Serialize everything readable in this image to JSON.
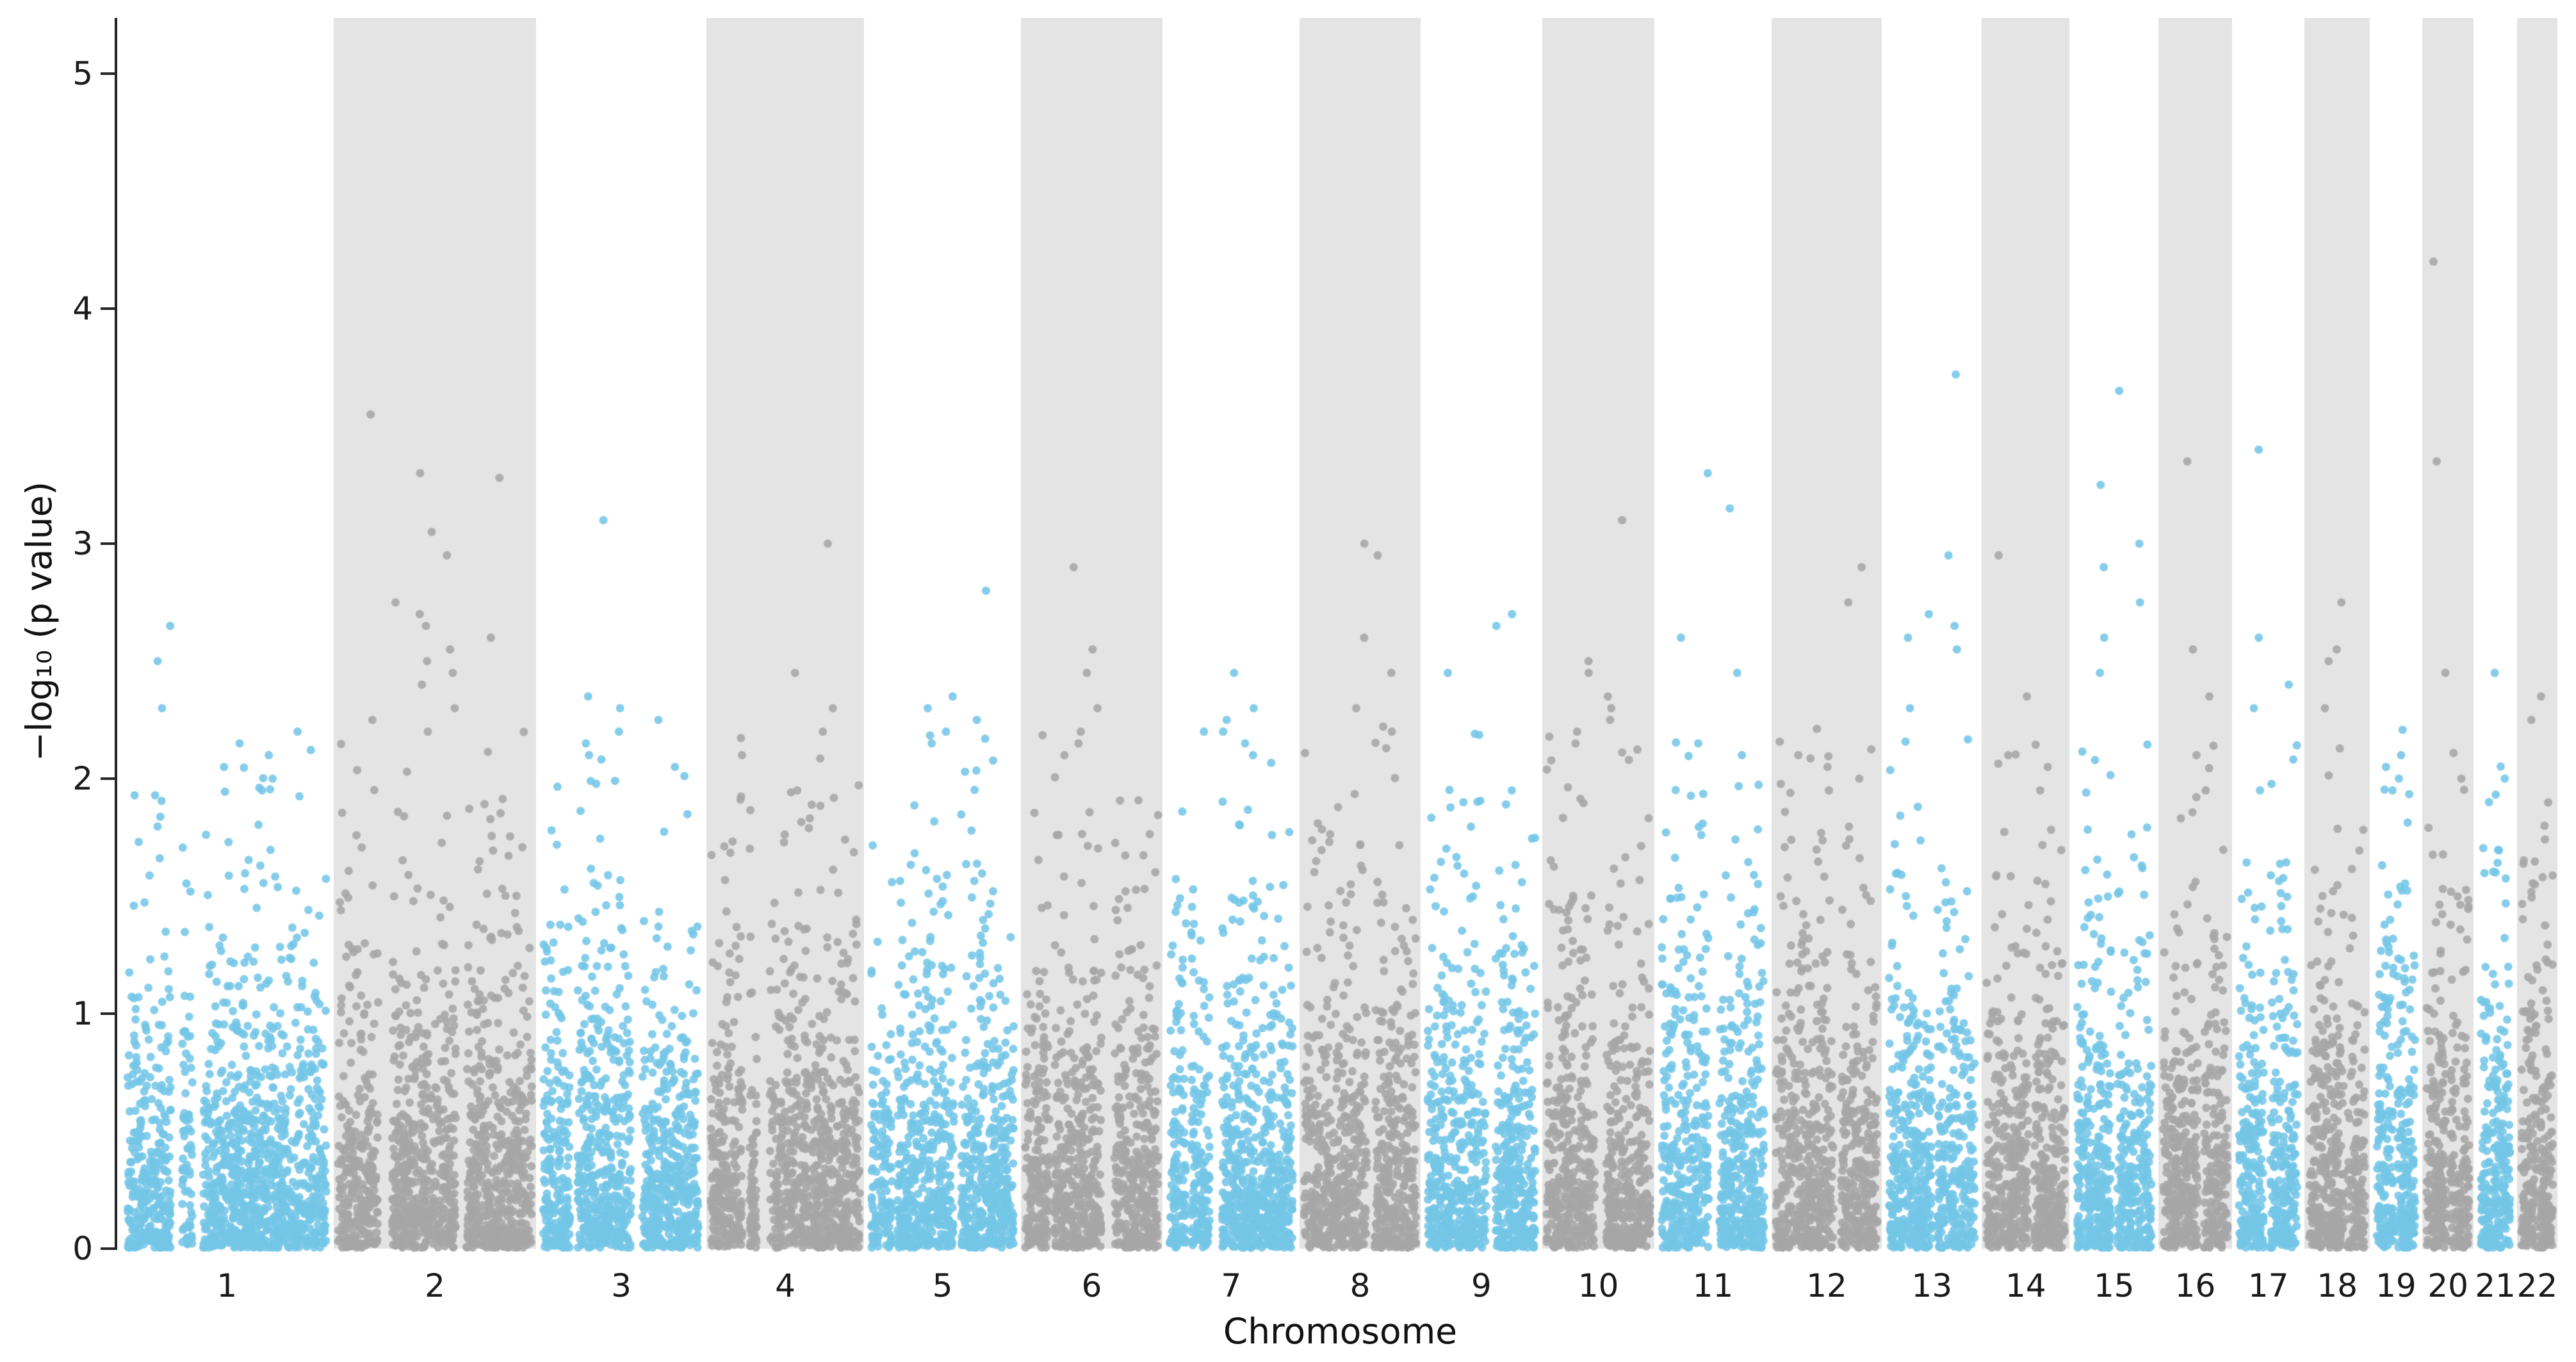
{
  "figure": {
    "background_color": "#ffffff",
    "band_color": "#e4e4e4",
    "odd_point_color": "#74c6e7",
    "even_point_color": "#a6a6a6",
    "axis_color": "#262626"
  },
  "axes": {
    "y_label": "−log₁₀ (p value)",
    "x_label": "Chromosome",
    "y_ticks": [
      0,
      1,
      2,
      3,
      4,
      5
    ],
    "y_range": [
      0,
      5.2
    ],
    "grid": false,
    "legend": "none"
  },
  "chart_data": {
    "type": "scatter",
    "subtype": "manhattan-plot",
    "title": "",
    "xlabel": "Chromosome",
    "ylabel": "−log₁₀ (p value)",
    "ylim": [
      0,
      5.2
    ],
    "point_style": "filled circle, alternating blue (odd chromosomes) and gray (even chromosomes), gray background band behind even chromosomes",
    "chromosomes": [
      {
        "label": "1",
        "length_mb": 249,
        "band": "white",
        "peaks": [
          2.65,
          2.5,
          2.3,
          2.15,
          2.1,
          2.05,
          2.0,
          1.95
        ]
      },
      {
        "label": "2",
        "length_mb": 243,
        "band": "gray",
        "peaks": [
          3.55,
          3.3,
          3.28,
          3.05,
          2.95,
          2.75,
          2.7,
          2.65,
          2.6,
          2.55,
          2.5,
          2.45,
          2.4,
          2.3,
          2.25,
          2.2
        ]
      },
      {
        "label": "3",
        "length_mb": 198,
        "band": "white",
        "peaks": [
          3.1,
          2.35,
          2.3,
          2.25,
          2.2,
          2.15,
          2.1,
          2.05
        ]
      },
      {
        "label": "4",
        "length_mb": 190,
        "band": "gray",
        "peaks": [
          3.0,
          2.45,
          2.3,
          2.2,
          2.1,
          1.95
        ]
      },
      {
        "label": "5",
        "length_mb": 182,
        "band": "white",
        "peaks": [
          2.8,
          2.35,
          2.3,
          2.25,
          2.2,
          2.15
        ]
      },
      {
        "label": "6",
        "length_mb": 171,
        "band": "gray",
        "peaks": [
          2.9,
          2.55,
          2.45,
          2.3,
          2.2,
          2.15,
          2.1
        ]
      },
      {
        "label": "7",
        "length_mb": 159,
        "band": "white",
        "peaks": [
          2.45,
          2.3,
          2.25,
          2.2,
          2.15,
          2.1
        ]
      },
      {
        "label": "8",
        "length_mb": 146,
        "band": "gray",
        "peaks": [
          3.0,
          2.95,
          2.6,
          2.45,
          2.3,
          2.2
        ]
      },
      {
        "label": "9",
        "length_mb": 141,
        "band": "white",
        "peaks": [
          2.7,
          2.65,
          2.45,
          1.95,
          1.9
        ]
      },
      {
        "label": "10",
        "length_mb": 136,
        "band": "gray",
        "peaks": [
          3.1,
          2.5,
          2.45,
          2.35,
          2.3,
          2.25,
          2.2,
          2.15
        ]
      },
      {
        "label": "11",
        "length_mb": 135,
        "band": "white",
        "peaks": [
          3.3,
          3.15,
          2.6,
          2.45,
          2.15,
          2.1
        ]
      },
      {
        "label": "12",
        "length_mb": 134,
        "band": "gray",
        "peaks": [
          2.9,
          2.75,
          2.1,
          2.05,
          2.0,
          1.95
        ]
      },
      {
        "label": "13",
        "length_mb": 115,
        "band": "white",
        "peaks": [
          3.72,
          2.95,
          2.7,
          2.65,
          2.6,
          2.55,
          2.3
        ]
      },
      {
        "label": "14",
        "length_mb": 107,
        "band": "gray",
        "peaks": [
          2.95,
          2.35,
          2.1,
          2.05,
          1.95
        ]
      },
      {
        "label": "15",
        "length_mb": 102,
        "band": "white",
        "peaks": [
          3.65,
          3.25,
          3.0,
          2.9,
          2.75,
          2.6,
          2.45
        ]
      },
      {
        "label": "16",
        "length_mb": 90,
        "band": "gray",
        "peaks": [
          3.35,
          2.55,
          2.35,
          2.1,
          1.95
        ]
      },
      {
        "label": "17",
        "length_mb": 83,
        "band": "white",
        "peaks": [
          3.4,
          2.6,
          2.4,
          2.3,
          1.95
        ]
      },
      {
        "label": "18",
        "length_mb": 80,
        "band": "gray",
        "peaks": [
          2.75,
          2.55,
          2.5,
          2.3
        ]
      },
      {
        "label": "19",
        "length_mb": 59,
        "band": "white",
        "peaks": [
          2.1,
          2.05,
          2.0,
          1.95
        ]
      },
      {
        "label": "20",
        "length_mb": 64,
        "band": "gray",
        "peaks": [
          4.2,
          3.35,
          2.45,
          2.0
        ]
      },
      {
        "label": "21",
        "length_mb": 48,
        "band": "white",
        "peaks": [
          2.45,
          2.0,
          1.9
        ]
      },
      {
        "label": "22",
        "length_mb": 51,
        "band": "gray",
        "peaks": [
          2.35,
          2.25,
          1.55
        ]
      }
    ]
  }
}
